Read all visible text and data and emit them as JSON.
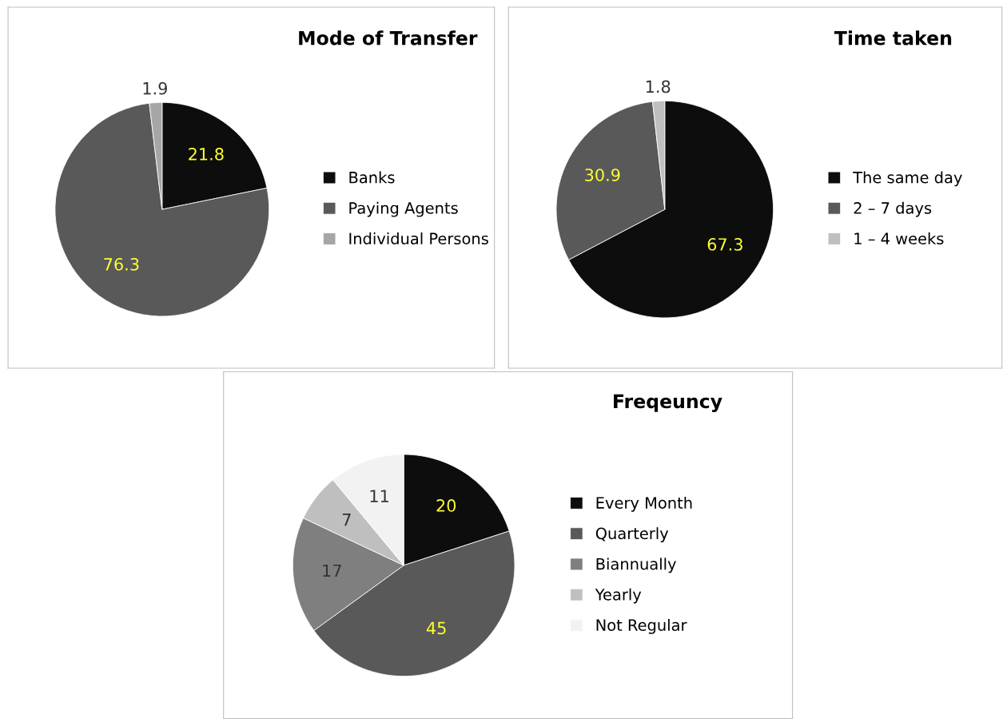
{
  "chart_data": [
    {
      "type": "pie",
      "title": "Mode of Transfer",
      "categories": [
        "Banks",
        "Paying Agents",
        "Individual Persons"
      ],
      "values": [
        21.8,
        76.3,
        1.9
      ],
      "colors": [
        "#0d0d0d",
        "#595959",
        "#a6a6a6"
      ],
      "data_labels": true,
      "legend": "right"
    },
    {
      "type": "pie",
      "title": "Time taken",
      "categories": [
        "The same day",
        "2 – 7 days",
        "1 – 4 weeks"
      ],
      "values": [
        67.3,
        30.9,
        1.8
      ],
      "colors": [
        "#0d0d0d",
        "#595959",
        "#bfbfbf"
      ],
      "data_labels": true,
      "legend": "right"
    },
    {
      "type": "pie",
      "title": "Freqeuncy",
      "categories": [
        "Every Month",
        "Quarterly",
        "Biannually",
        "Yearly",
        "Not Regular"
      ],
      "values": [
        20,
        45,
        17,
        7,
        11
      ],
      "colors": [
        "#0d0d0d",
        "#595959",
        "#7f7f7f",
        "#bfbfbf",
        "#f2f2f2"
      ],
      "data_labels": true,
      "legend": "right"
    }
  ]
}
